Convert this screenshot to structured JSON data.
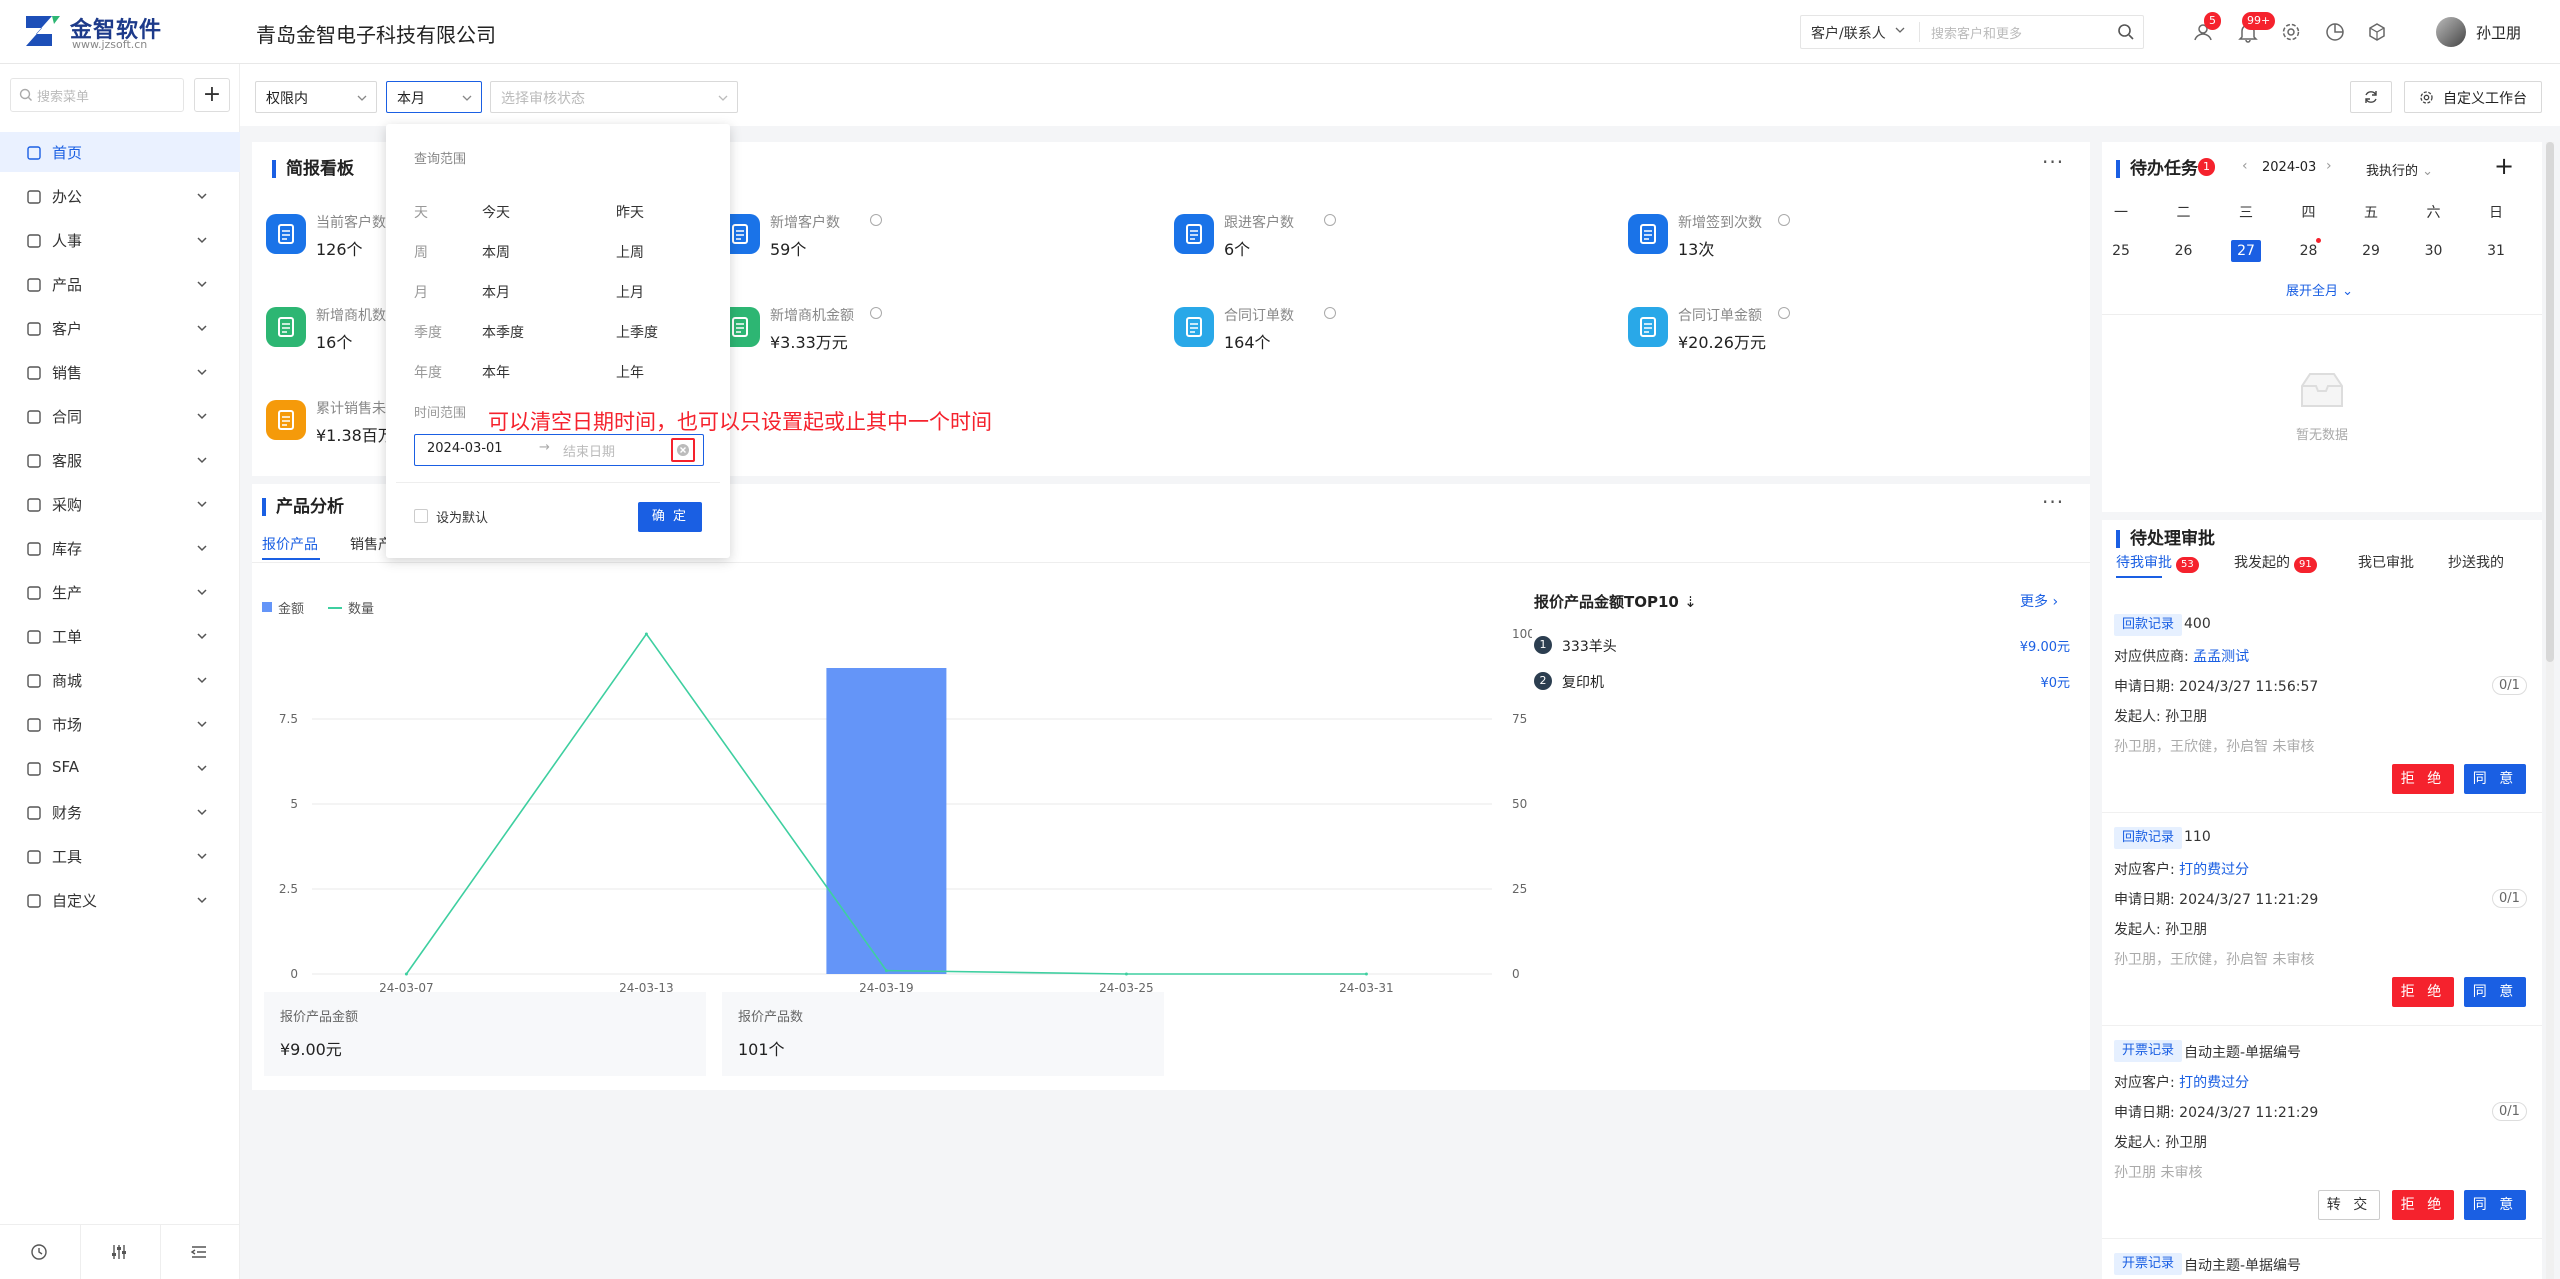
{
  "header": {
    "logo_name": "金智软件",
    "logo_url": "www.jzsoft.cn",
    "company": "青岛金智电子科技有限公司",
    "search_type": "客户/联系人",
    "search_placeholder": "搜索客户和更多",
    "badge_contacts": "5",
    "badge_bell": "99+",
    "user_name": "孙卫朋"
  },
  "sidebar": {
    "search_placeholder": "搜索菜单",
    "add_label": "+",
    "items": [
      {
        "label": "首页",
        "icon": "home-icon"
      },
      {
        "label": "办公",
        "icon": "office-icon"
      },
      {
        "label": "人事",
        "icon": "people-icon"
      },
      {
        "label": "产品",
        "icon": "box-icon"
      },
      {
        "label": "客户",
        "icon": "customer-icon"
      },
      {
        "label": "销售",
        "icon": "sales-icon"
      },
      {
        "label": "合同",
        "icon": "contract-icon"
      },
      {
        "label": "客服",
        "icon": "headset-icon"
      },
      {
        "label": "采购",
        "icon": "purchase-icon"
      },
      {
        "label": "库存",
        "icon": "warehouse-icon"
      },
      {
        "label": "生产",
        "icon": "production-icon"
      },
      {
        "label": "工单",
        "icon": "ticket-icon"
      },
      {
        "label": "商城",
        "icon": "shop-icon"
      },
      {
        "label": "市场",
        "icon": "market-icon"
      },
      {
        "label": "SFA",
        "icon": "sfa-icon"
      },
      {
        "label": "财务",
        "icon": "finance-icon"
      },
      {
        "label": "工具",
        "icon": "tool-icon"
      },
      {
        "label": "自定义",
        "icon": "grid-icon"
      }
    ]
  },
  "filters": {
    "scope": "权限内",
    "period": "本月",
    "status_placeholder": "选择审核状态",
    "custom_workbench": "自定义工作台"
  },
  "board": {
    "title": "简报看板",
    "kpis": [
      {
        "label": "当前客户数",
        "value": "126个",
        "color": "#1a73e8"
      },
      {
        "label": "新增客户数",
        "value": "59个",
        "color": "#1a73e8"
      },
      {
        "label": "跟进客户数",
        "value": "6个",
        "color": "#1a73e8"
      },
      {
        "label": "新增签到次数",
        "value": "13次",
        "color": "#1a73e8"
      },
      {
        "label": "新增商机数",
        "value": "16个",
        "color": "#2db673"
      },
      {
        "label": "新增商机金额",
        "value": "¥3.33万元",
        "color": "#2db673"
      },
      {
        "label": "合同订单数",
        "value": "164个",
        "color": "#29a8e8"
      },
      {
        "label": "合同订单金额",
        "value": "¥20.26万元",
        "color": "#29a8e8"
      },
      {
        "label": "累计销售未",
        "value": "¥1.38百万",
        "color": "#f59a0a"
      }
    ]
  },
  "dropdown": {
    "header": "查询范围",
    "rows": [
      {
        "label": "天",
        "a": "今天",
        "b": "昨天"
      },
      {
        "label": "周",
        "a": "本周",
        "b": "上周"
      },
      {
        "label": "月",
        "a": "本月",
        "b": "上月"
      },
      {
        "label": "季度",
        "a": "本季度",
        "b": "上季度"
      },
      {
        "label": "年度",
        "a": "本年",
        "b": "上年"
      }
    ],
    "range_label": "时间范围",
    "start_date": "2024-03-01",
    "arrow": "→",
    "end_placeholder": "结束日期",
    "default_label": "设为默认",
    "confirm": "确 定",
    "note": "可以清空日期时间，也可以只设置起或止其中一个时间"
  },
  "analysis": {
    "title": "产品分析",
    "tab_active": "报价产品",
    "tab_other": "销售产",
    "legend_amount": "金额",
    "legend_qty": "数量",
    "top_title": "报价产品金额TOP10",
    "more": "更多",
    "top_items": [
      {
        "rank": "1",
        "name": "333羊头",
        "value": "¥9.00元"
      },
      {
        "rank": "2",
        "name": "复印机",
        "value": "¥0元"
      }
    ],
    "stats": [
      {
        "label": "报价产品金额",
        "value": "¥9.00元"
      },
      {
        "label": "报价产品数",
        "value": "101个"
      }
    ]
  },
  "chart_data": {
    "type": "bar",
    "categories": [
      "24-03-07",
      "24-03-13",
      "24-03-19",
      "24-03-25",
      "24-03-31"
    ],
    "series": [
      {
        "name": "金额",
        "type": "bar",
        "values": [
          0,
          0,
          9,
          0,
          0
        ],
        "color": "#6495f8"
      },
      {
        "name": "数量",
        "type": "line",
        "values": [
          0,
          100,
          1,
          0,
          0
        ],
        "color": "#3ecfa0"
      }
    ],
    "y_left": {
      "ticks": [
        "0",
        "2.5",
        "5",
        "7.5"
      ],
      "range": [
        0,
        10
      ]
    },
    "y_right": {
      "ticks": [
        "0",
        "25",
        "50",
        "75",
        "100"
      ],
      "range": [
        0,
        100
      ]
    },
    "legend_position": "top-left"
  },
  "tasks": {
    "title": "待办任务",
    "badge": "1",
    "month": "2024-03",
    "filter": "我执行的",
    "add": "+",
    "weekdays": [
      "一",
      "二",
      "三",
      "四",
      "五",
      "六",
      "日"
    ],
    "days": [
      "25",
      "26",
      "27",
      "28",
      "29",
      "30",
      "31"
    ],
    "expand": "展开全月",
    "empty": "暂无数据"
  },
  "approvals": {
    "title": "待处理审批",
    "tabs": [
      {
        "label": "待我审批",
        "count": "53"
      },
      {
        "label": "我发起的",
        "count": "91"
      },
      {
        "label": "我已审批",
        "count": ""
      },
      {
        "label": "抄送我的",
        "count": ""
      }
    ],
    "reject": "拒 绝",
    "agree": "同 意",
    "transfer": "转 交",
    "items": [
      {
        "tag": "回款记录",
        "title": "400",
        "rel_label": "对应供应商:",
        "rel": "孟孟测试",
        "date": "申请日期: 2024/3/27 11:56:57",
        "initiator": "发起人: 孙卫朋",
        "reviewers": "孙卫朋，王欣健，孙启智 未审核",
        "count": "0/1"
      },
      {
        "tag": "回款记录",
        "title": "110",
        "rel_label": "对应客户:",
        "rel": "打的费过分",
        "date": "申请日期: 2024/3/27 11:21:29",
        "initiator": "发起人: 孙卫朋",
        "reviewers": "孙卫朋，王欣健，孙启智 未审核",
        "count": "0/1"
      },
      {
        "tag": "开票记录",
        "title": "自动主题-单据编号",
        "rel_label": "对应客户:",
        "rel": "打的费过分",
        "date": "申请日期: 2024/3/27 11:21:29",
        "initiator": "发起人: 孙卫朋",
        "reviewers": "孙卫朋 未审核",
        "count": "0/1"
      },
      {
        "tag": "开票记录",
        "title": "自动主题-单据编号"
      }
    ]
  }
}
